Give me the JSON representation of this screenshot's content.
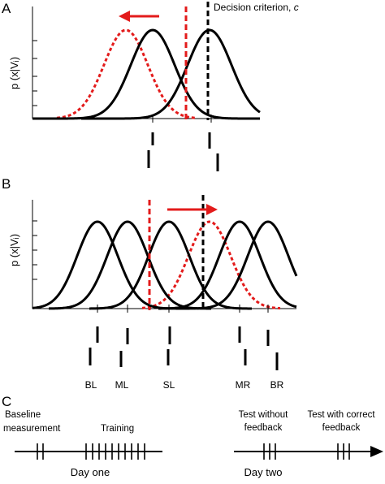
{
  "panel_a": {
    "letter": "A",
    "y_axis_label": "p (x|Vᵢ)",
    "criterion_label": "Decision criterion, ",
    "criterion_symbol": "c",
    "colors": {
      "black": "#000000",
      "red": "#e31b1b"
    }
  },
  "panel_b": {
    "letter": "B",
    "y_axis_label": "p (x|Vᵢ)",
    "conditions": [
      "BL",
      "ML",
      "SL",
      "MR",
      "BR"
    ]
  },
  "panel_c": {
    "letter": "C",
    "baseline_line1": "Baseline",
    "baseline_line2": "measurement",
    "training": "Training",
    "test_without_line1": "Test without",
    "test_without_line2": "feedback",
    "test_with_line1": "Test with correct",
    "test_with_line2": "feedback",
    "day_one": "Day one",
    "day_two": "Day two"
  }
}
